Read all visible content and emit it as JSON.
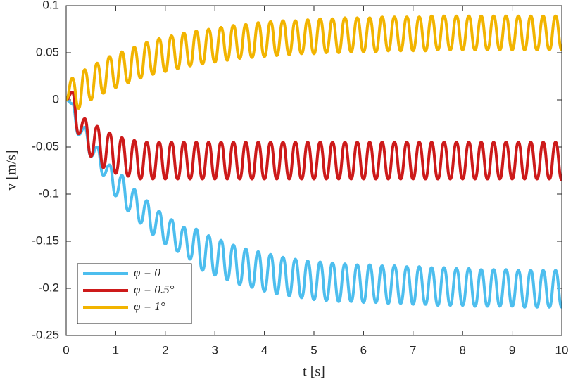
{
  "chart_data": {
    "type": "line",
    "xlabel": "t [s]",
    "ylabel": "v [m/s]",
    "x": [
      0,
      0.125,
      0.25,
      0.375,
      0.5,
      0.625,
      0.75,
      0.875,
      1,
      1.125,
      1.25,
      1.375,
      1.5,
      1.625,
      1.75,
      1.875,
      2,
      2.125,
      2.25,
      2.375,
      2.5,
      2.625,
      2.75,
      2.875,
      3,
      3.125,
      3.25,
      3.375,
      3.5,
      3.625,
      3.75,
      3.875,
      4,
      4.125,
      4.25,
      4.375,
      4.5,
      4.625,
      4.75,
      4.875,
      5,
      5.125,
      5.25,
      5.375,
      5.5,
      5.625,
      5.75,
      5.875,
      6,
      6.125,
      6.25,
      6.375,
      6.5,
      6.625,
      6.75,
      6.875,
      7,
      7.125,
      7.25,
      7.375,
      7.5,
      7.625,
      7.75,
      7.875,
      8,
      8.125,
      8.25,
      8.375,
      8.5,
      8.625,
      8.75,
      8.875,
      9,
      9.125,
      9.25,
      9.375,
      9.5,
      9.625,
      9.75,
      9.875,
      10
    ],
    "series": [
      {
        "name": "φ = 0",
        "color": "#4dbeee",
        "values": [
          0,
          -0.004,
          -0.037,
          -0.029,
          -0.06,
          -0.05,
          -0.08,
          -0.069,
          -0.102,
          -0.08,
          -0.118,
          -0.095,
          -0.131,
          -0.107,
          -0.143,
          -0.118,
          -0.153,
          -0.127,
          -0.161,
          -0.135,
          -0.169,
          -0.137,
          -0.181,
          -0.144,
          -0.186,
          -0.149,
          -0.191,
          -0.154,
          -0.196,
          -0.158,
          -0.199,
          -0.161,
          -0.203,
          -0.164,
          -0.206,
          -0.167,
          -0.208,
          -0.169,
          -0.21,
          -0.171,
          -0.212,
          -0.172,
          -0.213,
          -0.173,
          -0.214,
          -0.174,
          -0.214,
          -0.175,
          -0.215,
          -0.175,
          -0.215,
          -0.176,
          -0.216,
          -0.176,
          -0.216,
          -0.177,
          -0.217,
          -0.177,
          -0.217,
          -0.178,
          -0.218,
          -0.178,
          -0.218,
          -0.179,
          -0.218,
          -0.179,
          -0.219,
          -0.18,
          -0.219,
          -0.18,
          -0.219,
          -0.18,
          -0.219,
          -0.181,
          -0.22,
          -0.181,
          -0.22,
          -0.181,
          -0.22,
          -0.181,
          -0.22
        ]
      },
      {
        "name": "φ = 0.5°",
        "color": "#cd1a1a",
        "values": [
          0,
          0.008,
          -0.036,
          -0.02,
          -0.06,
          -0.028,
          -0.072,
          -0.035,
          -0.078,
          -0.04,
          -0.081,
          -0.043,
          -0.084,
          -0.045,
          -0.084,
          -0.045,
          -0.084,
          -0.045,
          -0.084,
          -0.045,
          -0.084,
          -0.045,
          -0.084,
          -0.045,
          -0.084,
          -0.045,
          -0.084,
          -0.045,
          -0.084,
          -0.045,
          -0.084,
          -0.045,
          -0.084,
          -0.045,
          -0.084,
          -0.045,
          -0.084,
          -0.045,
          -0.084,
          -0.045,
          -0.084,
          -0.045,
          -0.084,
          -0.045,
          -0.084,
          -0.045,
          -0.084,
          -0.045,
          -0.084,
          -0.045,
          -0.084,
          -0.045,
          -0.084,
          -0.045,
          -0.084,
          -0.045,
          -0.084,
          -0.045,
          -0.084,
          -0.045,
          -0.084,
          -0.045,
          -0.084,
          -0.045,
          -0.084,
          -0.045,
          -0.084,
          -0.045,
          -0.084,
          -0.045,
          -0.084,
          -0.045,
          -0.084,
          -0.045,
          -0.084,
          -0.045,
          -0.084,
          -0.045,
          -0.084,
          -0.045,
          -0.085
        ]
      },
      {
        "name": "φ = 1°",
        "color": "#f2b400",
        "values": [
          0,
          0.023,
          -0.009,
          0.032,
          0,
          0.039,
          0.007,
          0.046,
          0.013,
          0.051,
          0.018,
          0.056,
          0.023,
          0.061,
          0.027,
          0.065,
          0.03,
          0.068,
          0.033,
          0.071,
          0.036,
          0.073,
          0.038,
          0.075,
          0.04,
          0.077,
          0.042,
          0.079,
          0.044,
          0.08,
          0.045,
          0.082,
          0.046,
          0.083,
          0.047,
          0.084,
          0.048,
          0.084,
          0.049,
          0.085,
          0.049,
          0.086,
          0.05,
          0.086,
          0.05,
          0.087,
          0.051,
          0.087,
          0.051,
          0.087,
          0.051,
          0.088,
          0.052,
          0.088,
          0.052,
          0.088,
          0.052,
          0.088,
          0.052,
          0.089,
          0.053,
          0.089,
          0.053,
          0.089,
          0.053,
          0.089,
          0.053,
          0.089,
          0.053,
          0.089,
          0.053,
          0.089,
          0.053,
          0.089,
          0.053,
          0.089,
          0.053,
          0.089,
          0.053,
          0.089,
          0.053
        ]
      }
    ],
    "xlim": [
      0,
      10
    ],
    "xticks": [
      0,
      1,
      2,
      3,
      4,
      5,
      6,
      7,
      8,
      9,
      10
    ],
    "ylim": [
      -0.25,
      0.1
    ],
    "yticks": [
      -0.25,
      -0.2,
      -0.15,
      -0.1,
      -0.05,
      0,
      0.05,
      0.1
    ],
    "grid": false,
    "legend": "lower-left"
  }
}
